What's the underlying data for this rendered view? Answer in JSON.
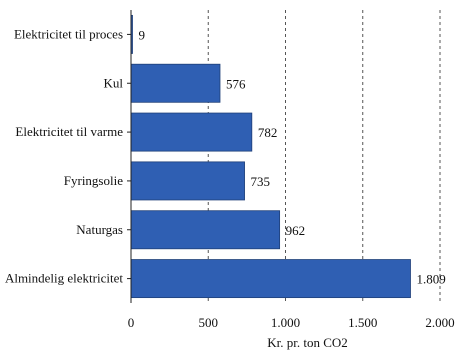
{
  "chart_data": {
    "type": "bar",
    "orientation": "horizontal",
    "categories": [
      "Elektricitet til proces",
      "Kul",
      "Elektricitet til varme",
      "Fyringsolie",
      "Naturgas",
      "Almindelig elektricitet"
    ],
    "values": [
      9,
      576,
      782,
      735,
      962,
      1809
    ],
    "value_labels": [
      "9",
      "576",
      "782",
      "735",
      "962",
      "1.809"
    ],
    "xlabel": "Kr. pr. ton CO2",
    "ylabel": "",
    "xlim": [
      0,
      2000
    ],
    "x_ticks": [
      0,
      500,
      1000,
      1500,
      2000
    ],
    "x_tick_labels": [
      "0",
      "500",
      "1.000",
      "1.500",
      "2.000"
    ],
    "grid": "vertical-dashed",
    "legend": "none",
    "bar_color": "#2f5fb3",
    "bar_edge_color": "#1f3f78"
  }
}
